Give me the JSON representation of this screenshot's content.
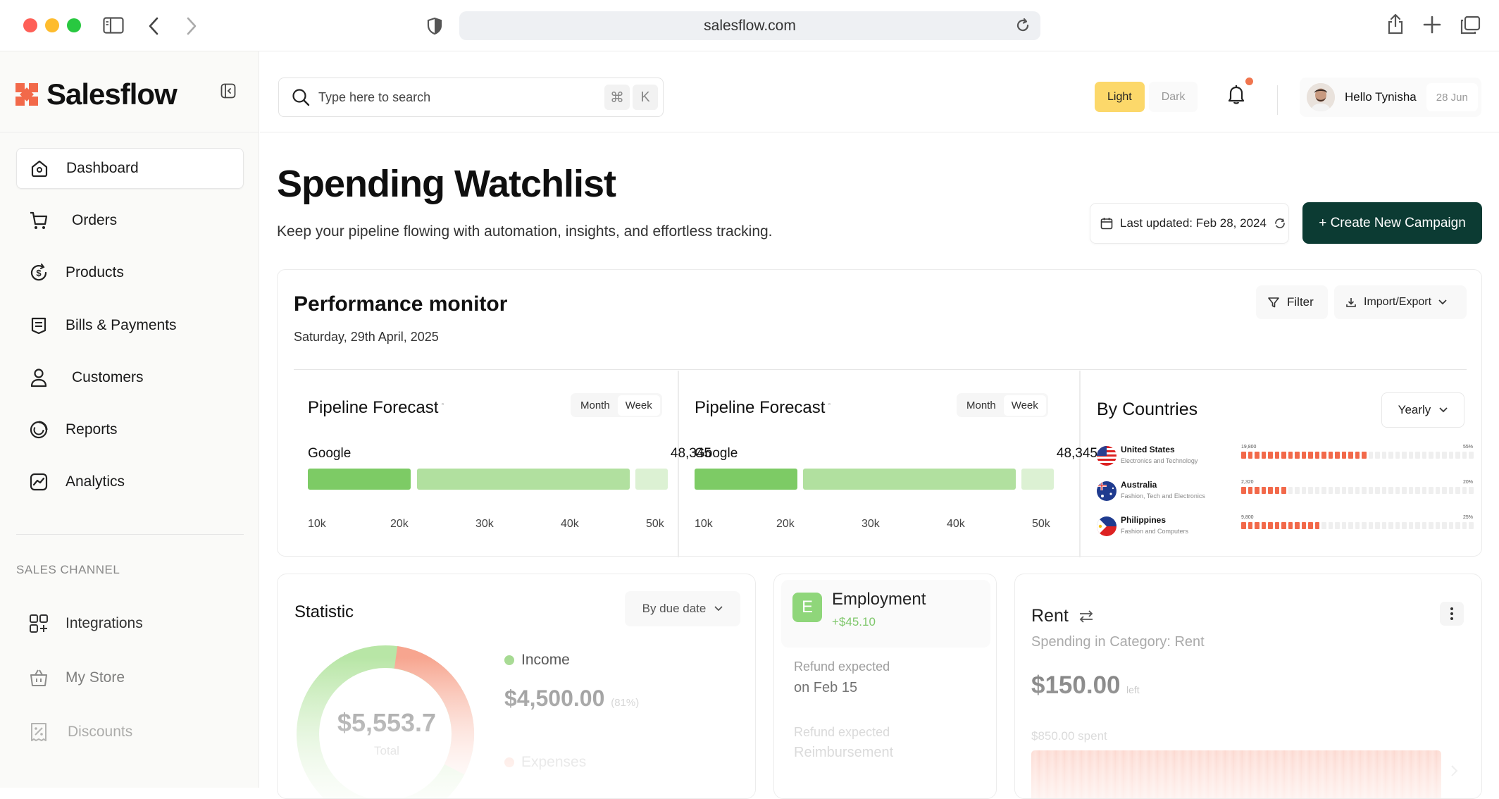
{
  "browser": {
    "url": "salesflow.com"
  },
  "sidebar": {
    "brand": "Salesflow",
    "items": [
      {
        "label": "Dashboard",
        "icon": "home-icon",
        "active": true
      },
      {
        "label": "Orders",
        "icon": "cart-icon"
      },
      {
        "label": "Products",
        "icon": "dollar-cycle-icon"
      },
      {
        "label": "Bills & Payments",
        "icon": "receipt-icon"
      },
      {
        "label": "Customers",
        "icon": "user-icon"
      },
      {
        "label": "Reports",
        "icon": "reports-icon"
      },
      {
        "label": "Analytics",
        "icon": "analytics-icon"
      }
    ],
    "section_label": "SALES CHANNEL",
    "channel_items": [
      {
        "label": "Integrations",
        "icon": "integrations-icon"
      },
      {
        "label": "My Store",
        "icon": "basket-icon"
      },
      {
        "label": "Discounts",
        "icon": "discount-icon"
      }
    ]
  },
  "topbar": {
    "search_placeholder": "Type here to search",
    "shortcut_cmd": "⌘",
    "shortcut_key": "K",
    "theme_light": "Light",
    "theme_dark": "Dark",
    "hello": "Hello Tynisha",
    "date": "28 Jun"
  },
  "header": {
    "title": "Spending Watchlist",
    "subtitle": "Keep your pipeline flowing with automation, insights, and effortless tracking.",
    "last_updated": "Last updated: Feb 28, 2024",
    "cta": "+ Create New Campaign"
  },
  "performance": {
    "title": "Performance monitor",
    "date": "Saturday, 29th April, 2025",
    "filter": "Filter",
    "import_export": "Import/Export",
    "forecasts": [
      {
        "title": "Pipeline Forecast",
        "seg_month": "Month",
        "seg_week": "Week",
        "row_label": "Google",
        "row_value": "48,345"
      },
      {
        "title": "Pipeline Forecast",
        "seg_month": "Month",
        "seg_week": "Week",
        "row_label": "Google",
        "row_value": "48,345"
      }
    ],
    "ticks": [
      "10k",
      "20k",
      "30k",
      "40k",
      "50k"
    ],
    "countries": {
      "title": "By Countries",
      "period": "Yearly",
      "list": [
        {
          "name": "United States",
          "desc": "Electronics and Technology",
          "value": "19,800",
          "pct": "55%",
          "filled": 19
        },
        {
          "name": "Australia",
          "desc": "Fashion, Tech and Electronics",
          "value": "2,320",
          "pct": "20%",
          "filled": 7
        },
        {
          "name": "Philippines",
          "desc": "Fashion and Computers",
          "value": "9,800",
          "pct": "25%",
          "filled": 12
        }
      ]
    }
  },
  "statistic": {
    "title": "Statistic",
    "sort": "By due date",
    "total_value": "$5,553.7",
    "total_label": "Total",
    "income_label": "Income",
    "income_value": "$4,500.00",
    "income_pct": "(81%)",
    "expenses_label": "Expenses"
  },
  "employment": {
    "badge": "E",
    "title": "Employment",
    "amount": "+$45.10",
    "refund1_label": "Refund expected",
    "refund1_value": "on Feb 15",
    "refund2_label": "Refund expected",
    "refund2_value": "Reimbursement"
  },
  "rent": {
    "title": "Rent",
    "subtitle": "Spending in Category: Rent",
    "amount": "$150.00",
    "amount_suffix": "left",
    "spent": "$850.00 spent"
  },
  "colors": {
    "accent_dark": "#0c3b33",
    "green": "#7dcb65",
    "green_light": "#b1e09f",
    "orange": "#f2694a",
    "yellow": "#fcd86a"
  }
}
